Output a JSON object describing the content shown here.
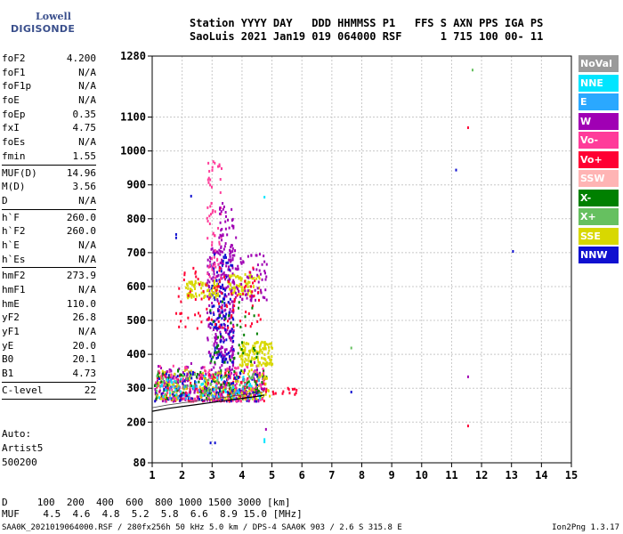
{
  "logo": {
    "line1": "Lowell",
    "line2": "DIGISONDE"
  },
  "header": {
    "line1": "Station YYYY DAY   DDD HHMMSS P1   FFS S AXN PPS IGA PS",
    "line2": "SaoLuis 2021 Jan19 019 064000 RSF      1 715 100 00- 11"
  },
  "params": {
    "group1": [
      {
        "k": "foF2",
        "v": "4.200"
      },
      {
        "k": "foF1",
        "v": "N/A"
      },
      {
        "k": "foF1p",
        "v": "N/A"
      },
      {
        "k": "foE",
        "v": "N/A"
      },
      {
        "k": "foEp",
        "v": "0.35"
      },
      {
        "k": "fxI",
        "v": "4.75"
      },
      {
        "k": "foEs",
        "v": "N/A"
      },
      {
        "k": "fmin",
        "v": "1.55"
      }
    ],
    "group2": [
      {
        "k": "MUF(D)",
        "v": "14.96"
      },
      {
        "k": "M(D)",
        "v": "3.56"
      },
      {
        "k": "D",
        "v": "N/A"
      }
    ],
    "group3": [
      {
        "k": "h`F",
        "v": "260.0"
      },
      {
        "k": "h`F2",
        "v": "260.0"
      },
      {
        "k": "h`E",
        "v": "N/A"
      },
      {
        "k": "h`Es",
        "v": "N/A"
      }
    ],
    "group4": [
      {
        "k": "hmF2",
        "v": "273.9"
      },
      {
        "k": "hmF1",
        "v": "N/A"
      },
      {
        "k": "hmE",
        "v": "110.0"
      },
      {
        "k": "yF2",
        "v": "26.8"
      },
      {
        "k": "yF1",
        "v": "N/A"
      },
      {
        "k": "yE",
        "v": "20.0"
      },
      {
        "k": "B0",
        "v": "20.1"
      },
      {
        "k": "B1",
        "v": "4.73"
      }
    ],
    "group5": [
      {
        "k": "C-level",
        "v": "22"
      }
    ]
  },
  "artist": {
    "line1": "Auto:",
    "line2": "Artist5",
    "line3": "500200"
  },
  "legend": [
    {
      "label": "NoVal",
      "color": "#9a9a9a"
    },
    {
      "label": "NNE",
      "color": "#00e5ff"
    },
    {
      "label": "E",
      "color": "#2aa8ff"
    },
    {
      "label": "W",
      "color": "#a000b4"
    },
    {
      "label": "Vo-",
      "color": "#ff3c9a"
    },
    {
      "label": "Vo+",
      "color": "#ff0033"
    },
    {
      "label": "SSW",
      "color": "#ffb4b4"
    },
    {
      "label": "X-",
      "color": "#008000"
    },
    {
      "label": "X+",
      "color": "#66c060"
    },
    {
      "label": "SSE",
      "color": "#d8d800"
    },
    {
      "label": "NNW",
      "color": "#1010d0"
    }
  ],
  "bottom": {
    "line1": "D     100  200  400  600  800 1000 1500 3000 [km]",
    "line2": "MUF    4.5  4.6  4.8  5.2  5.8  6.6  8.9 15.0 [MHz]"
  },
  "footer": "SAA0K_2021019064000.RSF / 280fx256h 50 kHz 5.0 km / DPS-4 SAA0K 903 / 2.6 S 315.8 E",
  "footer_version": "Ion2Png 1.3.17",
  "chart_data": {
    "type": "scatter",
    "xlabel": "",
    "ylabel": "",
    "xlim": [
      1,
      15
    ],
    "ylim": [
      80,
      1280
    ],
    "x_ticks": [
      1,
      2,
      3,
      4,
      5,
      6,
      7,
      8,
      9,
      10,
      11,
      12,
      13,
      14,
      15
    ],
    "y_ticks": [
      80,
      200,
      300,
      400,
      500,
      600,
      700,
      800,
      900,
      1000,
      1100,
      1280
    ],
    "grid": true,
    "trace": {
      "name": "",
      "x": [
        1.0,
        1.5,
        2.0,
        2.5,
        3.0,
        3.5,
        4.0,
        4.5,
        4.75
      ],
      "y": [
        232,
        240,
        246,
        252,
        258,
        264,
        270,
        276,
        280
      ]
    },
    "clusters": [
      {
        "color": "#ff0033",
        "x": [
          1.05,
          4.8
        ],
        "y": [
          265,
          350
        ],
        "n": 220
      },
      {
        "color": "#a000b4",
        "x": [
          1.05,
          4.8
        ],
        "y": [
          265,
          380
        ],
        "n": 200
      },
      {
        "color": "#008000",
        "x": [
          1.05,
          4.8
        ],
        "y": [
          270,
          360
        ],
        "n": 120
      },
      {
        "color": "#d8d800",
        "x": [
          1.1,
          4.9
        ],
        "y": [
          270,
          360
        ],
        "n": 150
      },
      {
        "color": "#1010d0",
        "x": [
          1.05,
          4.5
        ],
        "y": [
          265,
          360
        ],
        "n": 90
      },
      {
        "color": "#ff3c9a",
        "x": [
          1.05,
          4.8
        ],
        "y": [
          265,
          370
        ],
        "n": 110
      },
      {
        "color": "#66c060",
        "x": [
          1.05,
          4.6
        ],
        "y": [
          280,
          350
        ],
        "n": 60
      },
      {
        "color": "#00e5ff",
        "x": [
          1.2,
          4.6
        ],
        "y": [
          270,
          340
        ],
        "n": 40
      },
      {
        "color": "#2aa8ff",
        "x": [
          1.2,
          4.6
        ],
        "y": [
          270,
          340
        ],
        "n": 30
      },
      {
        "color": "#d8d800",
        "x": [
          3.9,
          5.0
        ],
        "y": [
          370,
          440
        ],
        "n": 130
      },
      {
        "color": "#a000b4",
        "x": [
          2.8,
          3.7
        ],
        "y": [
          380,
          720
        ],
        "n": 240
      },
      {
        "color": "#1010d0",
        "x": [
          2.9,
          3.7
        ],
        "y": [
          380,
          700
        ],
        "n": 120
      },
      {
        "color": "#d8d800",
        "x": [
          2.1,
          3.2
        ],
        "y": [
          570,
          620
        ],
        "n": 80
      },
      {
        "color": "#d8d800",
        "x": [
          3.5,
          4.6
        ],
        "y": [
          580,
          640
        ],
        "n": 70
      },
      {
        "color": "#a000b4",
        "x": [
          3.6,
          4.8
        ],
        "y": [
          560,
          700
        ],
        "n": 70
      },
      {
        "color": "#ff0033",
        "x": [
          1.7,
          4.6
        ],
        "y": [
          480,
          660
        ],
        "n": 90
      },
      {
        "color": "#ff3c9a",
        "x": [
          2.8,
          3.3
        ],
        "y": [
          620,
          980
        ],
        "n": 60
      },
      {
        "color": "#a000b4",
        "x": [
          3.2,
          3.8
        ],
        "y": [
          700,
          860
        ],
        "n": 40
      },
      {
        "color": "#008000",
        "x": [
          2.9,
          4.5
        ],
        "y": [
          380,
          560
        ],
        "n": 40
      },
      {
        "color": "#ff0033",
        "x": [
          5.0,
          5.8
        ],
        "y": [
          285,
          305
        ],
        "n": 14
      }
    ],
    "points": [
      {
        "x": 11.7,
        "y": 1240,
        "color": "#66c060"
      },
      {
        "x": 11.55,
        "y": 1070,
        "color": "#ff0033"
      },
      {
        "x": 11.15,
        "y": 945,
        "color": "#1010d0"
      },
      {
        "x": 13.05,
        "y": 705,
        "color": "#1010d0"
      },
      {
        "x": 7.65,
        "y": 420,
        "color": "#66c060"
      },
      {
        "x": 7.65,
        "y": 290,
        "color": "#1010d0"
      },
      {
        "x": 11.55,
        "y": 335,
        "color": "#a000b4"
      },
      {
        "x": 11.55,
        "y": 190,
        "color": "#ff0033"
      },
      {
        "x": 4.8,
        "y": 180,
        "color": "#a000b4"
      },
      {
        "x": 4.75,
        "y": 150,
        "color": "#00e5ff"
      },
      {
        "x": 4.75,
        "y": 143,
        "color": "#00e5ff"
      },
      {
        "x": 4.75,
        "y": 865,
        "color": "#00e5ff"
      },
      {
        "x": 2.95,
        "y": 140,
        "color": "#1010d0"
      },
      {
        "x": 3.1,
        "y": 140,
        "color": "#1010d0"
      },
      {
        "x": 1.8,
        "y": 755,
        "color": "#1010d0"
      },
      {
        "x": 1.8,
        "y": 745,
        "color": "#1010d0"
      },
      {
        "x": 2.3,
        "y": 868,
        "color": "#1010d0"
      }
    ]
  }
}
